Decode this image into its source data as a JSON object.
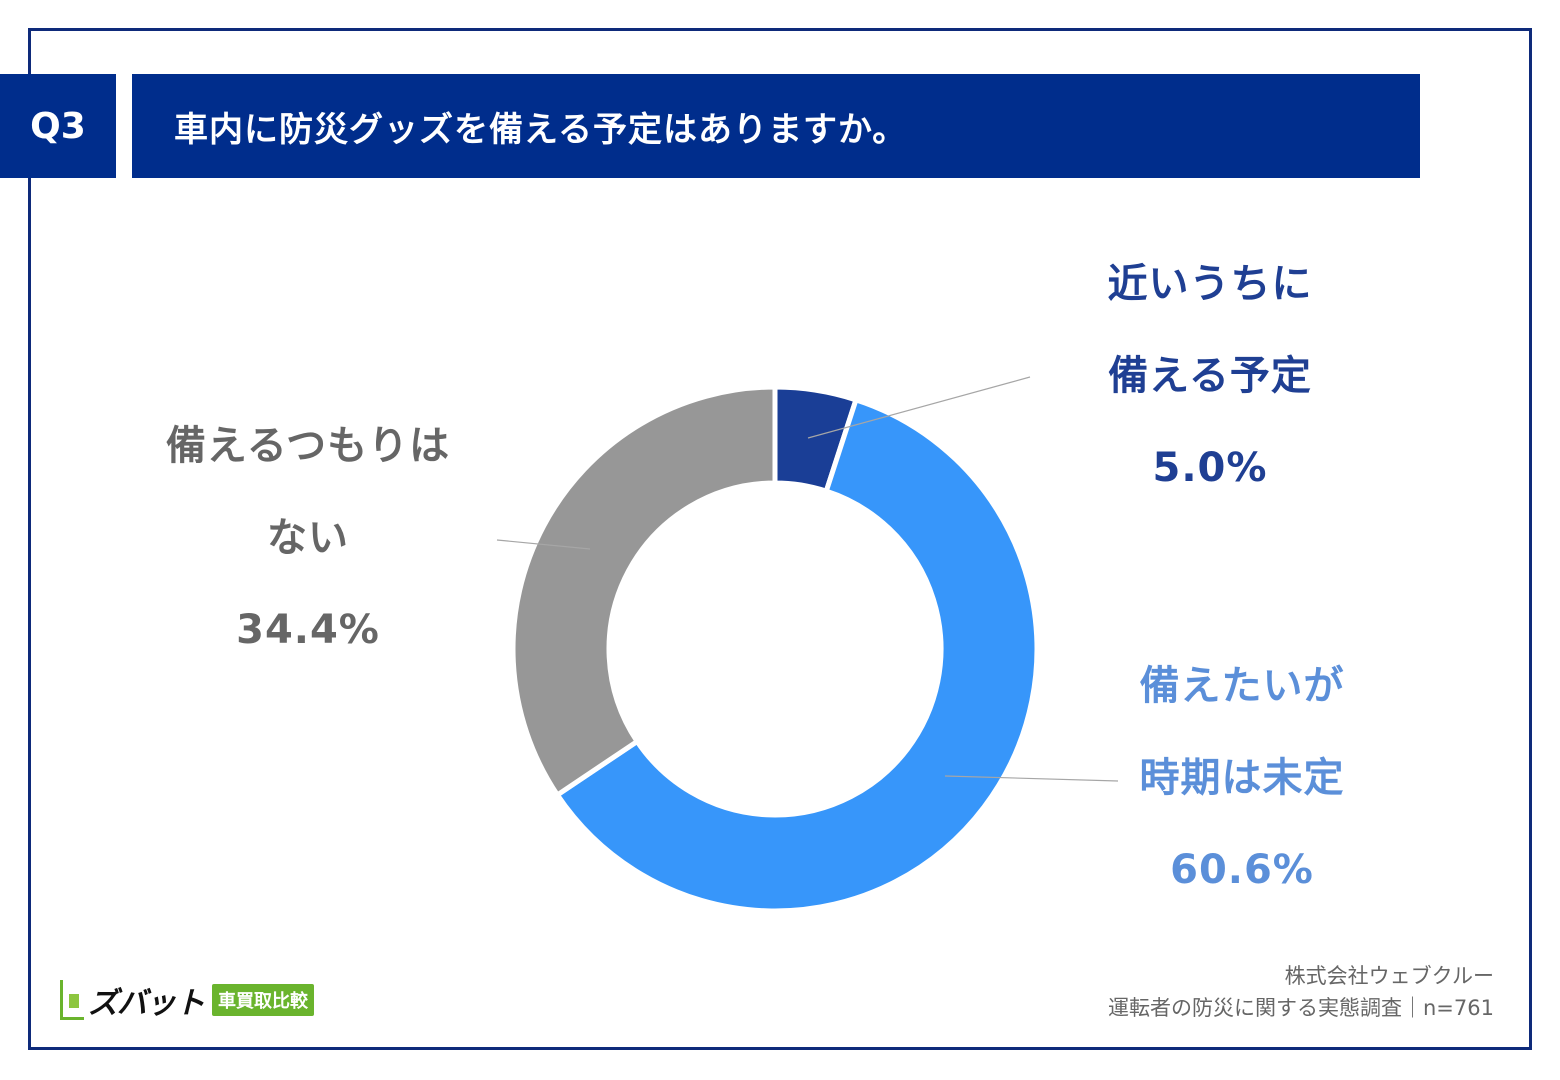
{
  "header": {
    "q_label": "Q3",
    "title": "車内に防災グッズを備える予定はありますか。"
  },
  "chart_data": {
    "type": "pie",
    "variant": "donut",
    "title": "車内に防災グッズを備える予定はありますか。",
    "slices": [
      {
        "label": "近いうちに備える予定",
        "value": 5.0,
        "color": "#1a3e96"
      },
      {
        "label": "備えたいが時期は未定",
        "value": 60.6,
        "color": "#3796fa"
      },
      {
        "label": "備えるつもりはない",
        "value": 34.4,
        "color": "#979797"
      }
    ]
  },
  "labels": {
    "soon": {
      "line1": "近いうちに",
      "line2": "備える予定",
      "pct": "5.0%"
    },
    "undecided": {
      "line1": "備えたいが",
      "line2": "時期は未定",
      "pct": "60.6%"
    },
    "no": {
      "line1": "備えるつもりは",
      "line2": "ない",
      "pct": "34.4%"
    }
  },
  "colors": {
    "brand_navy": "#002d8c",
    "soon_text": "#1f3f93",
    "undecided_text": "#5b8fd9",
    "no_text": "#666666",
    "logo_green": "#6ab42d"
  },
  "footer": {
    "logo_text": "ズバット",
    "logo_badge": "車買取比較",
    "source_line1": "株式会社ウェブクルー",
    "source_line2": "運転者の防災に関する実態調査｜n=761"
  }
}
